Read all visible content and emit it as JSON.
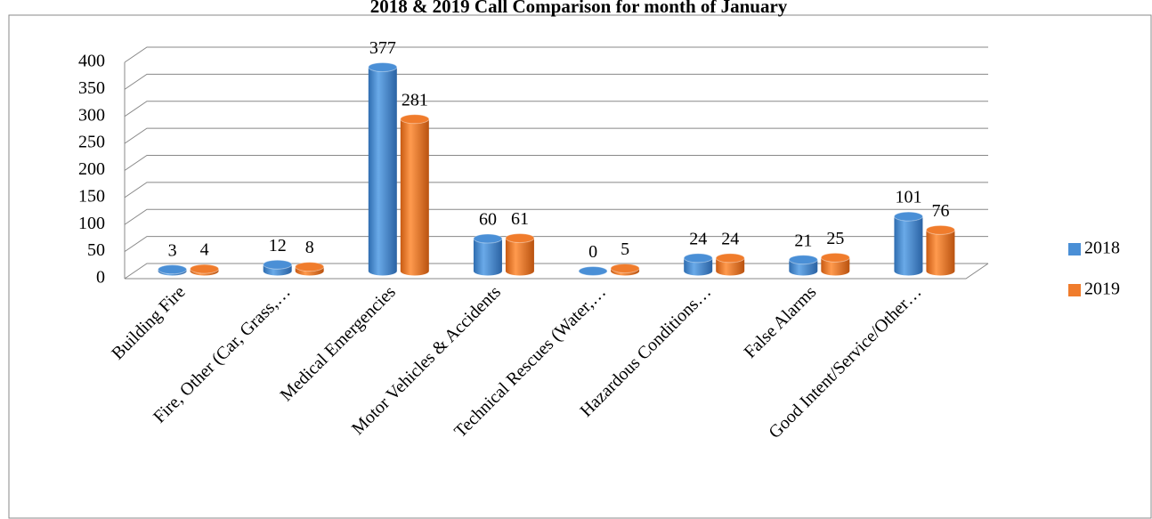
{
  "chart_data": {
    "type": "bar3d",
    "title": "2018 & 2019 Call Comparison for month of January",
    "categories": [
      "Building Fire",
      "Fire, Other (Car, Grass,…",
      "Medical Emergencies",
      "Motor Vehicles & Accidents",
      "Technical Rescues (Water,…",
      "Hazardous Conditions…",
      "False Alarms",
      "Good Intent/Service/Other…"
    ],
    "series": [
      {
        "name": "2018",
        "color": "#4a8fd6",
        "values": [
          3,
          12,
          377,
          60,
          0,
          24,
          21,
          101
        ]
      },
      {
        "name": "2019",
        "color": "#f07c2c",
        "values": [
          4,
          8,
          281,
          61,
          5,
          24,
          25,
          76
        ]
      }
    ],
    "ylim": [
      0,
      400
    ],
    "yticks": [
      0,
      50,
      100,
      150,
      200,
      250,
      300,
      350,
      400
    ],
    "grid": true,
    "legend": "right"
  }
}
